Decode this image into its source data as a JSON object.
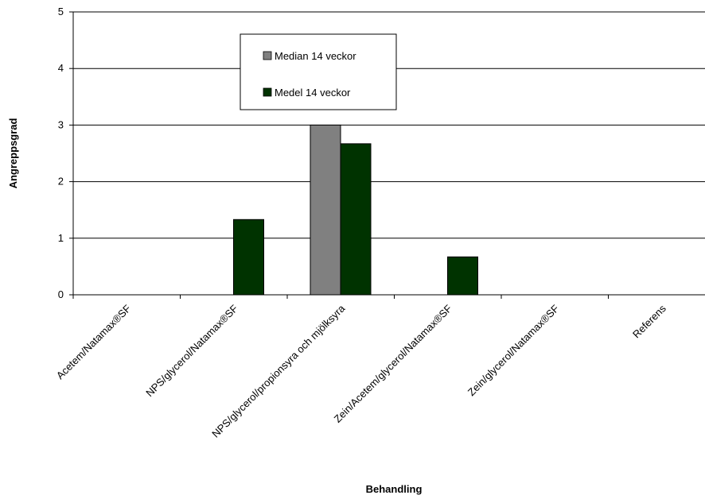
{
  "chart_data": {
    "type": "bar",
    "xlabel": "Behandling",
    "ylabel": "Angreppsgrad",
    "ylim": [
      0,
      5
    ],
    "yticks": [
      0,
      1,
      2,
      3,
      4,
      5
    ],
    "grid": true,
    "legend_position": "top-center",
    "categories": [
      "Acetem/Natamax®SF",
      "NPS/glycerol/Natamax®SF",
      "NPS/glycerol/propionsyra och mjölksyra",
      "Zein/Acetem/glycerol/Natamax®SF",
      "Zein/glycerol/Natamax®SF",
      "Referens"
    ],
    "series": [
      {
        "name": "Median 14 veckor",
        "color": "#808080",
        "values": [
          0,
          0,
          3,
          0,
          0,
          0
        ]
      },
      {
        "name": "Medel 14 veckor",
        "color": "#003300",
        "values": [
          0,
          1.33,
          2.67,
          0.67,
          0,
          0
        ]
      }
    ]
  }
}
